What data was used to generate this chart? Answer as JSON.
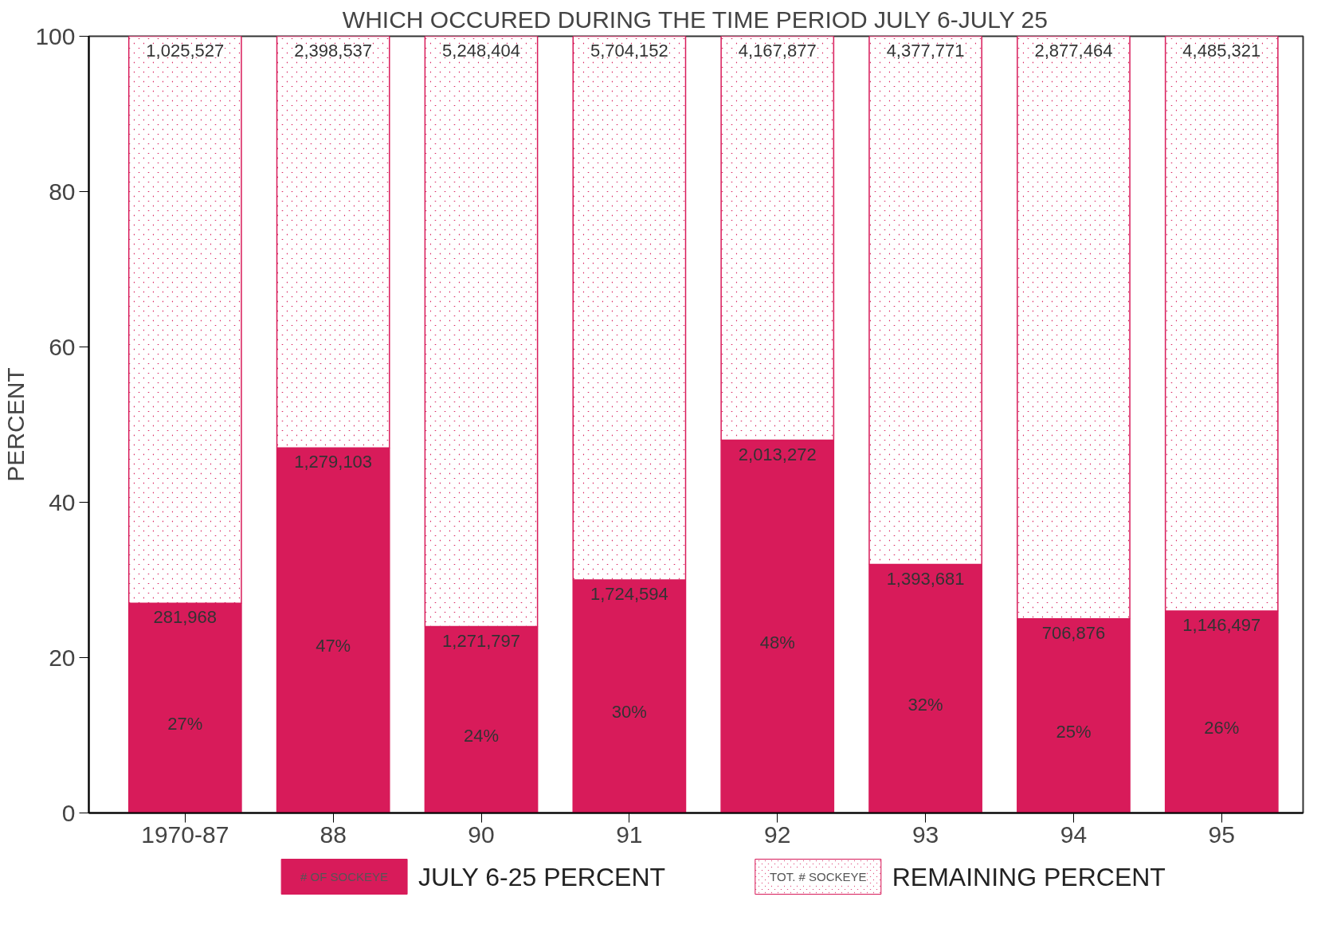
{
  "chart_data": {
    "type": "bar",
    "stacked": true,
    "title": "WHICH OCCURED DURING THE TIME PERIOD JULY 6-JULY 25",
    "ylabel": "PERCENT",
    "categories": [
      "1970-87",
      "88",
      "90",
      "91",
      "92",
      "93",
      "94",
      "95"
    ],
    "series": [
      {
        "name": "JULY 6-25 PERCENT",
        "color": "#d81b5a",
        "values": [
          27,
          47,
          24,
          30,
          48,
          32,
          25,
          26
        ],
        "value_labels": [
          "27%",
          "47%",
          "24%",
          "30%",
          "48%",
          "32%",
          "25%",
          "26%"
        ]
      },
      {
        "name": "REMAINING PERCENT",
        "color": "#d81b5a",
        "values": [
          73,
          53,
          76,
          70,
          52,
          68,
          75,
          74
        ]
      }
    ],
    "ylim": [
      0,
      100
    ],
    "yticks": [
      0,
      20,
      40,
      60,
      80,
      100
    ],
    "grid": false,
    "legend": "bottom",
    "annotations": [
      {
        "text": "281,968",
        "x": "1970-87",
        "y": 27
      },
      {
        "text": "1,279,103",
        "x": "88",
        "y": 47
      },
      {
        "text": "1,271,797",
        "x": "90",
        "y": 24
      },
      {
        "text": "1,724,594",
        "x": "91",
        "y": 30
      },
      {
        "text": "2,013,272",
        "x": "92",
        "y": 48
      },
      {
        "text": "1,393,681",
        "x": "93",
        "y": 32
      },
      {
        "text": "706,876",
        "x": "94",
        "y": 25
      },
      {
        "text": "1,146,497",
        "x": "95",
        "y": 26
      },
      {
        "text": "1,025,527",
        "x": "1970-87",
        "y": 100
      },
      {
        "text": "2,398,537",
        "x": "88",
        "y": 100
      },
      {
        "text": "5,248,404",
        "x": "90",
        "y": 100
      },
      {
        "text": "5,704,152",
        "x": "91",
        "y": 100
      },
      {
        "text": "4,167,877",
        "x": "92",
        "y": 100
      },
      {
        "text": "4,377,771",
        "x": "93",
        "y": 100
      },
      {
        "text": "2,877,464",
        "x": "94",
        "y": 100
      },
      {
        "text": "4,485,321",
        "x": "95",
        "y": 100
      },
      "# OF SOCKEYE",
      "TOT. # SOCKEYE"
    ]
  }
}
